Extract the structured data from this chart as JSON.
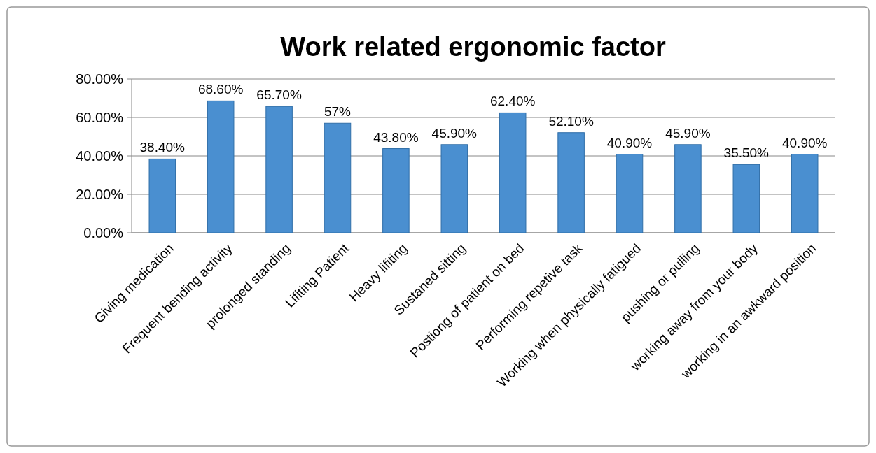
{
  "chart_data": {
    "type": "bar",
    "title": "Work related ergonomic factor",
    "categories": [
      "Giving medication",
      "Frequent bending activity",
      "prolonged standing",
      "Lifiting Patient",
      "Heavy lifiting",
      "Sustaned sitting",
      "Postiong of patient on bed",
      "Performing repetive task",
      "Working when physically fatigued",
      "pushing or pulling",
      "working away from your body",
      "working in an awkward position"
    ],
    "values": [
      38.4,
      68.6,
      65.7,
      57,
      43.8,
      45.9,
      62.4,
      52.1,
      40.9,
      45.9,
      35.5,
      40.9
    ],
    "value_labels": [
      "38.40%",
      "68.60%",
      "65.70%",
      "57%",
      "43.80%",
      "45.90%",
      "62.40%",
      "52.10%",
      "40.90%",
      "45.90%",
      "35.50%",
      "40.90%"
    ],
    "color": "#4a8fd0",
    "ylim": [
      0,
      80
    ],
    "yticks": [
      {
        "value": 0,
        "label": "0.00%"
      },
      {
        "value": 20,
        "label": "20.00%"
      },
      {
        "value": 40,
        "label": "40.00%"
      },
      {
        "value": 60,
        "label": "60.00%"
      },
      {
        "value": 80,
        "label": "80.00%"
      }
    ],
    "grid": "y"
  }
}
